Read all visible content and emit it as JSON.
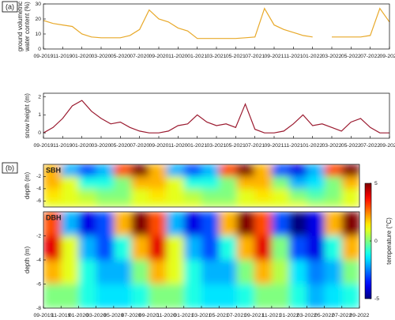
{
  "panels": [
    "(a)",
    "(b)"
  ],
  "chart_data": [
    {
      "type": "line",
      "ylabel": [
        "ground volumetric",
        "water content (%)"
      ],
      "color": "#e8a92a",
      "xlim": [
        "09-2019",
        "09-2022"
      ],
      "ylim": [
        0,
        30
      ],
      "yticks": [
        0,
        10,
        20,
        30
      ],
      "xticks": [
        "09-2019",
        "11-2019",
        "01-2020",
        "03-2020",
        "05-2020",
        "07-2020",
        "09-2020",
        "11-2020",
        "01-2021",
        "03-2021",
        "05-2021",
        "07-2021",
        "09-2021",
        "11-2021",
        "01-2022",
        "03-2022",
        "05-2022",
        "07-2022",
        "09-2022"
      ],
      "x": [
        "09-2019",
        "10-2019",
        "11-2019",
        "12-2019",
        "01-2020",
        "02-2020",
        "03-2020",
        "04-2020",
        "05-2020",
        "06-2020",
        "07-2020",
        "08-2020",
        "09-2020",
        "10-2020",
        "11-2020",
        "12-2020",
        "01-2021",
        "02-2021",
        "03-2021",
        "04-2021",
        "05-2021",
        "06-2021",
        "07-2021",
        "08-2021",
        "09-2021",
        "10-2021",
        "11-2021",
        "12-2021",
        "01-2022",
        "02-2022",
        "03-2022",
        "04-2022",
        "05-2022",
        "06-2022",
        "07-2022",
        "08-2022",
        "09-2022"
      ],
      "values": [
        19,
        17,
        16,
        15,
        10,
        8,
        7.5,
        7.5,
        7.5,
        9,
        13,
        26,
        20,
        18,
        14,
        12,
        7,
        7,
        7,
        7,
        7,
        7.5,
        8,
        27,
        16,
        13,
        11,
        9,
        8,
        null,
        8,
        8,
        8,
        8,
        9,
        27,
        18
      ]
    },
    {
      "type": "line",
      "ylabel": [
        "snow height (m)"
      ],
      "color": "#9b1b30",
      "xlim": [
        "09-2019",
        "09-2022"
      ],
      "ylim": [
        -0.3,
        2.2
      ],
      "yticks": [
        0,
        1,
        2
      ],
      "xticks": [
        "09-2019",
        "11-2019",
        "01-2020",
        "03-2020",
        "05-2020",
        "07-2020",
        "09-2020",
        "11-2020",
        "01-2021",
        "03-2021",
        "05-2021",
        "07-2021",
        "09-2021",
        "11-2021",
        "01-2022",
        "03-2022",
        "05-2022",
        "07-2022",
        "09-2022"
      ],
      "x": [
        "09-2019",
        "10-2019",
        "11-2019",
        "12-2019",
        "01-2020",
        "02-2020",
        "03-2020",
        "04-2020",
        "05-2020",
        "06-2020",
        "07-2020",
        "08-2020",
        "09-2020",
        "10-2020",
        "11-2020",
        "12-2020",
        "01-2021",
        "02-2021",
        "03-2021",
        "04-2021",
        "05-2021",
        "06-2021",
        "07-2021",
        "08-2021",
        "09-2021",
        "10-2021",
        "11-2021",
        "12-2021",
        "01-2022",
        "02-2022",
        "03-2022",
        "04-2022",
        "05-2022",
        "06-2022",
        "07-2022",
        "08-2022",
        "09-2022"
      ],
      "values": [
        0,
        0.3,
        0.8,
        1.5,
        1.8,
        1.2,
        0.8,
        0.5,
        0.6,
        0.3,
        0.1,
        0,
        0,
        0.1,
        0.4,
        0.5,
        1.0,
        0.6,
        0.4,
        0.5,
        0.3,
        1.6,
        0.2,
        0,
        0,
        0.1,
        0.5,
        1.0,
        0.4,
        0.5,
        0.3,
        0.1,
        0.6,
        0.8,
        0.3,
        0,
        0
      ]
    },
    {
      "type": "heatmap",
      "title": "SBH",
      "ylabel": [
        "depth (m)"
      ],
      "colormap": "jet",
      "zlim": [
        -5,
        5
      ],
      "xlim": [
        "09-2019",
        "09-2022"
      ],
      "ylim": [
        -7,
        0
      ],
      "yticks": [
        -6,
        -4,
        -2
      ],
      "x_bins": [
        "09-2019",
        "11-2019",
        "01-2020",
        "03-2020",
        "05-2020",
        "07-2020",
        "09-2020",
        "11-2020",
        "01-2021",
        "03-2021",
        "05-2021",
        "07-2021",
        "09-2021",
        "11-2021",
        "01-2022",
        "03-2022",
        "05-2022",
        "07-2022",
        "09-2022"
      ],
      "y_bins": [
        0,
        -2,
        -4,
        -6,
        -7
      ],
      "z": [
        [
          2,
          -2,
          -3,
          -2,
          3,
          5,
          2,
          -2,
          -3,
          -2,
          3,
          5,
          2,
          -3,
          -4,
          -2,
          3,
          5
        ],
        [
          2,
          1,
          -1,
          -1,
          0,
          2,
          2,
          1,
          -1,
          -1,
          0,
          2,
          2,
          0,
          -2,
          -1.5,
          0,
          2
        ],
        [
          1.5,
          1,
          0.5,
          0,
          0,
          1,
          1.5,
          1,
          0.5,
          0,
          0,
          1,
          1.5,
          1,
          0,
          -0.5,
          0,
          1
        ],
        [
          1,
          1,
          1,
          0.5,
          0.5,
          1,
          1,
          1,
          1,
          0.5,
          0.5,
          1,
          1,
          1,
          1,
          0.5,
          0.5,
          1
        ]
      ]
    },
    {
      "type": "heatmap",
      "title": "DBH",
      "ylabel": [
        "depth (m)"
      ],
      "colormap": "jet",
      "zlim": [
        -5,
        5
      ],
      "xlim": [
        "09-2019",
        "09-2022"
      ],
      "ylim": [
        -8,
        0
      ],
      "yticks": [
        -8,
        -6,
        -4,
        -2
      ],
      "xticks": [
        "09-2019",
        "11-2019",
        "01-2020",
        "03-2020",
        "05-2020",
        "07-2020",
        "09-2020",
        "11-2020",
        "01-2021",
        "03-2021",
        "05-2021",
        "07-2021",
        "09-2021",
        "11-2021",
        "01-2022",
        "03-2022",
        "05-2022",
        "07-2022",
        "09-2022"
      ],
      "x_bins": [
        "09-2019",
        "11-2019",
        "01-2020",
        "03-2020",
        "05-2020",
        "07-2020",
        "09-2020",
        "11-2020",
        "01-2021",
        "03-2021",
        "05-2021",
        "07-2021",
        "09-2021",
        "11-2021",
        "01-2022",
        "03-2022",
        "05-2022",
        "07-2022",
        "09-2022"
      ],
      "y_bins": [
        0,
        -2,
        -4,
        -6,
        -8
      ],
      "z": [
        [
          3,
          -2,
          -4,
          -3,
          2,
          5,
          3,
          -2,
          -4,
          -3,
          2,
          5,
          3,
          -3,
          -5,
          -4,
          2,
          5
        ],
        [
          4,
          1,
          -2,
          -3,
          -1,
          2,
          4,
          1,
          -2,
          -3,
          -1,
          2,
          4,
          0,
          -3,
          -4,
          -1,
          2
        ],
        [
          2,
          1,
          -1,
          -2,
          -2,
          0,
          2,
          1,
          -1,
          -2,
          -2,
          0,
          2,
          0.5,
          -1.5,
          -2.5,
          -2,
          0
        ],
        [
          0,
          0,
          -1,
          -1.5,
          -1.5,
          -1,
          0,
          0,
          -1,
          -1.5,
          -1.5,
          -1,
          0,
          0,
          -1,
          -2,
          -1.5,
          -1
        ]
      ]
    },
    {
      "type": "colorbar",
      "label": "temperature (°C)",
      "colormap": "jet",
      "lim": [
        -5,
        5
      ],
      "ticks": [
        -5,
        0,
        5
      ]
    }
  ]
}
